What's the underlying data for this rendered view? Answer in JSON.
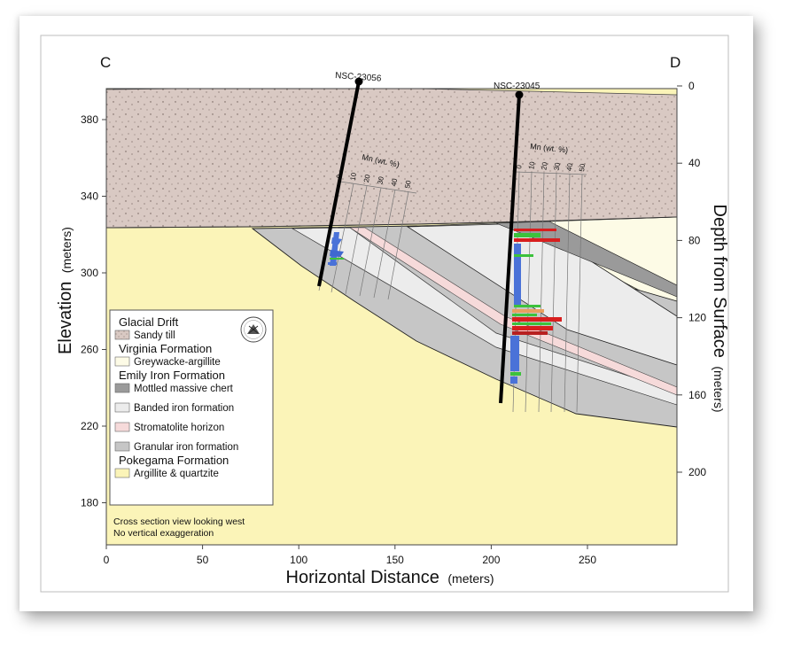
{
  "figure": {
    "left_label": "C",
    "right_label": "D",
    "x_axis_title": "Horizontal Distance",
    "x_axis_unit": "(meters)",
    "y_axis_left_title": "Elevation",
    "y_axis_left_unit": "(meters)",
    "y_axis_right_title": "Depth from Surface",
    "y_axis_right_unit": "(meters)",
    "x_ticks": [
      "0",
      "50",
      "100",
      "150",
      "200",
      "250"
    ],
    "y_left_ticks": [
      "380",
      "340",
      "300",
      "260",
      "220",
      "180"
    ],
    "y_right_ticks": [
      "0",
      "40",
      "80",
      "120",
      "160",
      "200"
    ]
  },
  "boreholes": [
    {
      "name": "NSC-23056",
      "mn_label": "Mn (wt. %)",
      "mn_ticks": [
        "0",
        "10",
        "20",
        "30",
        "40",
        "50"
      ]
    },
    {
      "name": "NSC-23045",
      "mn_label": "Mn (wt. %)",
      "mn_ticks": [
        "0",
        "10",
        "20",
        "30",
        "40",
        "50"
      ]
    }
  ],
  "legend": {
    "groups": [
      {
        "title": "Glacial Drift",
        "items": [
          {
            "label": "Sandy till",
            "color": "#d9c9c3"
          }
        ]
      },
      {
        "title": "Virginia Formation",
        "items": [
          {
            "label": "Greywacke-argillite",
            "color": "#fdfbe6"
          }
        ]
      },
      {
        "title": "Emily Iron Formation",
        "items": [
          {
            "label": "Mottled massive chert",
            "color": "#9a9a9a"
          },
          {
            "label": "Banded iron formation",
            "color": "#ececec"
          },
          {
            "label": "Stromatolite horizon",
            "color": "#f6dada"
          },
          {
            "label": "Granular iron formation",
            "color": "#c6c6c6"
          }
        ]
      },
      {
        "title": "Pokegama Formation",
        "items": [
          {
            "label": "Argillite & quartzite",
            "color": "#fbf4b8"
          }
        ]
      }
    ],
    "notes": [
      "Cross section view looking west",
      "No vertical exaggeration"
    ]
  },
  "colors": {
    "sandy_till": "#d9c9c3",
    "pokegama": "#fbf4b8",
    "virginia": "#fdfbe6",
    "granular": "#c6c6c6",
    "banded": "#ececec",
    "stromatolite": "#f6dada",
    "mn_blue": "#4a72d8",
    "mn_green": "#3cc23c",
    "mn_red": "#d81e1e",
    "mn_orange": "#e8a060"
  }
}
